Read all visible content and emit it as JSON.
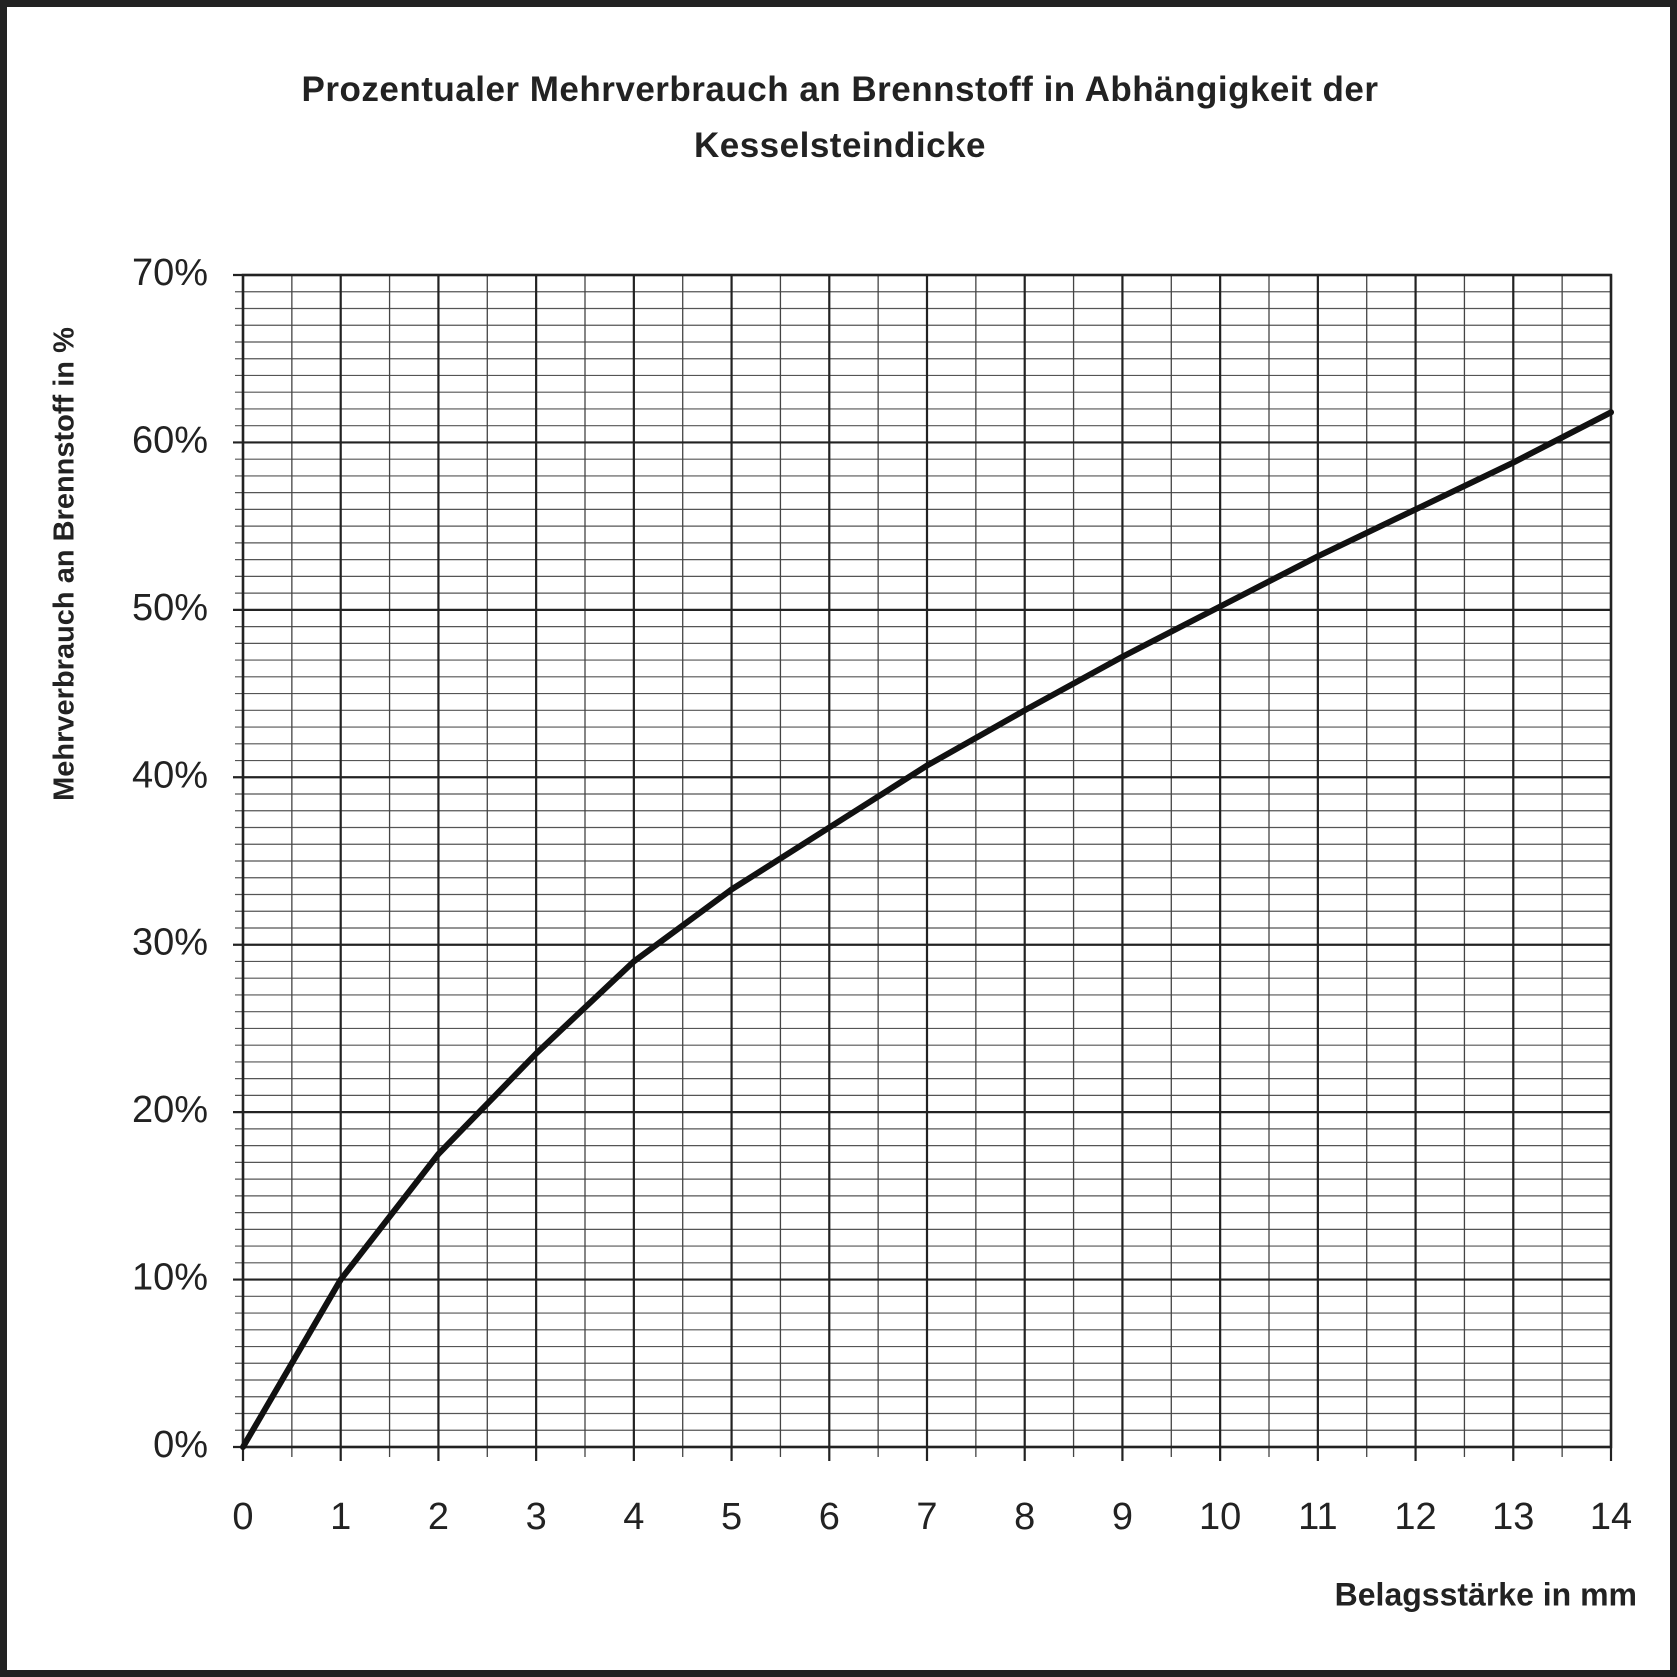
{
  "chart_data": {
    "type": "line",
    "title": "Prozentualer Mehrverbrauch an Brennstoff in Abhängigkeit der Kesselsteindicke",
    "xlabel": "Belagsstärke in mm",
    "ylabel": "Mehrverbrauch an Brennstoff in %",
    "x": [
      0,
      1,
      2,
      3,
      4,
      5,
      6,
      7,
      8,
      9,
      10,
      11,
      12,
      13,
      14
    ],
    "series": [
      {
        "color": "#111111",
        "values": [
          0,
          10,
          17.5,
          23.5,
          29,
          33.3,
          37,
          40.7,
          44,
          47.2,
          50.2,
          53.2,
          56,
          58.8,
          61.8
        ]
      }
    ],
    "xlim": [
      0,
      14
    ],
    "xticks": [
      0,
      1,
      2,
      3,
      4,
      5,
      6,
      7,
      8,
      9,
      10,
      11,
      12,
      13,
      14
    ],
    "ylim": [
      0,
      70
    ],
    "yticks": [
      {
        "value": 0,
        "label": "0%"
      },
      {
        "value": 10,
        "label": "10%"
      },
      {
        "value": 20,
        "label": "20%"
      },
      {
        "value": 30,
        "label": "30%"
      },
      {
        "value": 40,
        "label": "40%"
      },
      {
        "value": 50,
        "label": "50%"
      },
      {
        "value": 60,
        "label": "60%"
      },
      {
        "value": 70,
        "label": "70%"
      }
    ],
    "grid": true
  }
}
